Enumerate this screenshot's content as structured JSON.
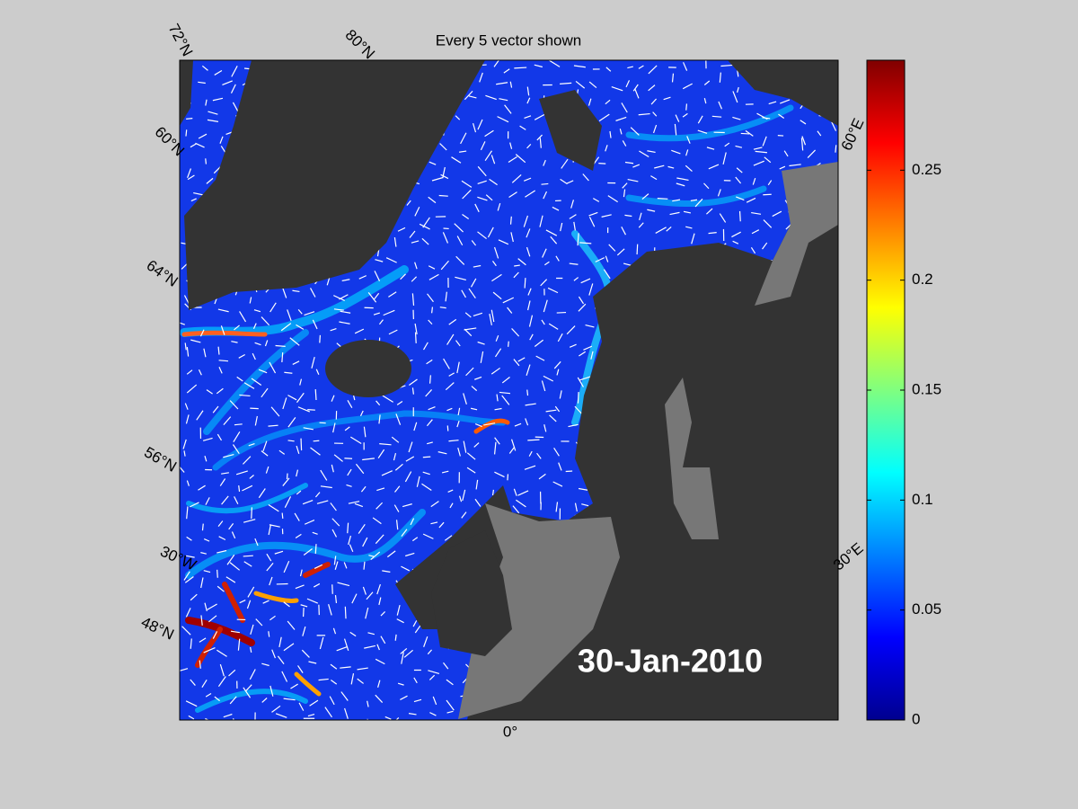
{
  "chart_data": {
    "type": "map",
    "title": "Every 5 vector shown",
    "annotation": "30-Jan-2010",
    "graticule_labels": [
      "72°N",
      "80°N",
      "60°N",
      "64°N",
      "56°N",
      "30°W",
      "48°N",
      "0°",
      "60°E",
      "30°E"
    ],
    "colorbar": {
      "colormap": "jet",
      "clim": [
        0,
        0.3
      ],
      "ticks": [
        0,
        0.05,
        0.1,
        0.15,
        0.2,
        0.25
      ]
    }
  }
}
